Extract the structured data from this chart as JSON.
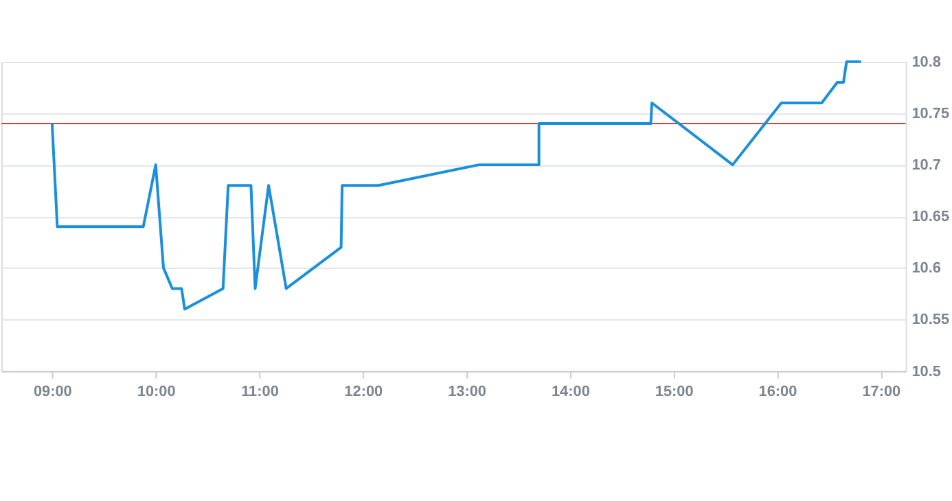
{
  "chart_data": {
    "type": "line",
    "x": [
      9.0,
      9.05,
      9.88,
      10.0,
      10.075,
      10.16,
      10.25,
      10.28,
      10.65,
      10.7,
      10.92,
      10.96,
      11.09,
      11.26,
      11.79,
      11.8,
      12.15,
      13.12,
      13.7,
      13.7,
      14.78,
      14.79,
      15.57,
      16.04,
      16.43,
      16.58,
      16.64,
      16.67,
      16.81
    ],
    "series": [
      {
        "color": "#1a8fdc",
        "values": [
          10.74,
          10.64,
          10.64,
          10.7,
          10.6,
          10.58,
          10.58,
          10.56,
          10.58,
          10.68,
          10.68,
          10.58,
          10.68,
          10.58,
          10.62,
          10.68,
          10.68,
          10.7,
          10.7,
          10.74,
          10.74,
          10.76,
          10.7,
          10.76,
          10.76,
          10.78,
          10.78,
          10.8,
          10.8
        ]
      }
    ],
    "xlim": [
      8.51,
      17.24
    ],
    "xticks": [
      {
        "value": 9,
        "label": "09:00"
      },
      {
        "value": 10,
        "label": "10:00"
      },
      {
        "value": 11,
        "label": "11:00"
      },
      {
        "value": 12,
        "label": "12:00"
      },
      {
        "value": 13,
        "label": "13:00"
      },
      {
        "value": 14,
        "label": "14:00"
      },
      {
        "value": 15,
        "label": "15:00"
      },
      {
        "value": 16,
        "label": "16:00"
      },
      {
        "value": 17,
        "label": "17:00"
      }
    ],
    "ylim": [
      10.5,
      10.8
    ],
    "yticks": [
      10.5,
      10.55,
      10.6,
      10.65,
      10.7,
      10.75,
      10.8
    ],
    "ref_lines": [
      {
        "axis": "y",
        "value": 10.74,
        "color": "#d9423a"
      }
    ],
    "grid": "y",
    "marker": "none",
    "line_style": "solid"
  }
}
